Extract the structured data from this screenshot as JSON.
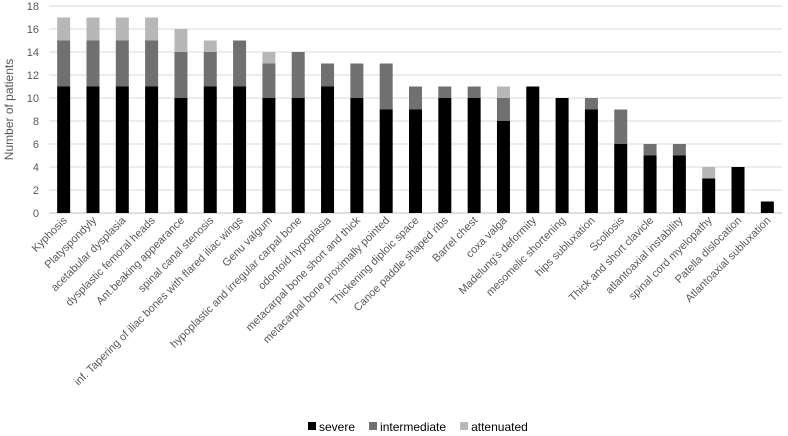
{
  "chart_data": {
    "type": "bar",
    "stacked": true,
    "title": "",
    "xlabel": "",
    "ylabel": "Number of patients",
    "ylim": [
      0,
      18
    ],
    "yticks": [
      0,
      2,
      4,
      6,
      8,
      10,
      12,
      14,
      16,
      18
    ],
    "grid": true,
    "legend_position": "bottom",
    "categories": [
      "Kyphosis",
      "Platyspondyly",
      "acetabular dysplasia",
      "dysplastic femoral heads",
      "Ant.beaking appearance",
      "spinal canal stenosis",
      "inf. Tapering of iliac bones with flared iliac wings",
      "Genu valgum",
      "hypoplastic and irregular carpal bone",
      "odontoid hypoplasia",
      "metacarpal bone short and thick",
      "metacarpal bone proximally pointed",
      "Thickening diploic space",
      "Canoe paddle shaped ribs",
      "Barrel chest",
      "coxa valga",
      "Madelung's deformity",
      "mesomelic shortening",
      "hips subluxation",
      "Scoliosis",
      "Thick and short clavicle",
      "atlantoaxial instability",
      "spinal cord myelopathy",
      "Patella dislocation",
      "Atlantoaxial subluxation"
    ],
    "series": [
      {
        "name": "severe",
        "color": "#000000",
        "values": [
          11,
          11,
          11,
          11,
          10,
          11,
          11,
          10,
          10,
          11,
          10,
          9,
          9,
          10,
          10,
          8,
          11,
          10,
          9,
          6,
          5,
          5,
          3,
          4,
          1
        ]
      },
      {
        "name": "intermediate",
        "color": "#707070",
        "values": [
          4,
          4,
          4,
          4,
          4,
          3,
          4,
          3,
          4,
          2,
          3,
          4,
          2,
          1,
          1,
          2,
          0,
          0,
          1,
          3,
          1,
          1,
          0,
          0,
          0
        ]
      },
      {
        "name": "attenuated",
        "color": "#b7b7b7",
        "values": [
          2,
          2,
          2,
          2,
          2,
          1,
          0,
          1,
          0,
          0,
          0,
          0,
          0,
          0,
          0,
          1,
          0,
          0,
          0,
          0,
          0,
          0,
          1,
          0,
          0
        ]
      }
    ]
  }
}
